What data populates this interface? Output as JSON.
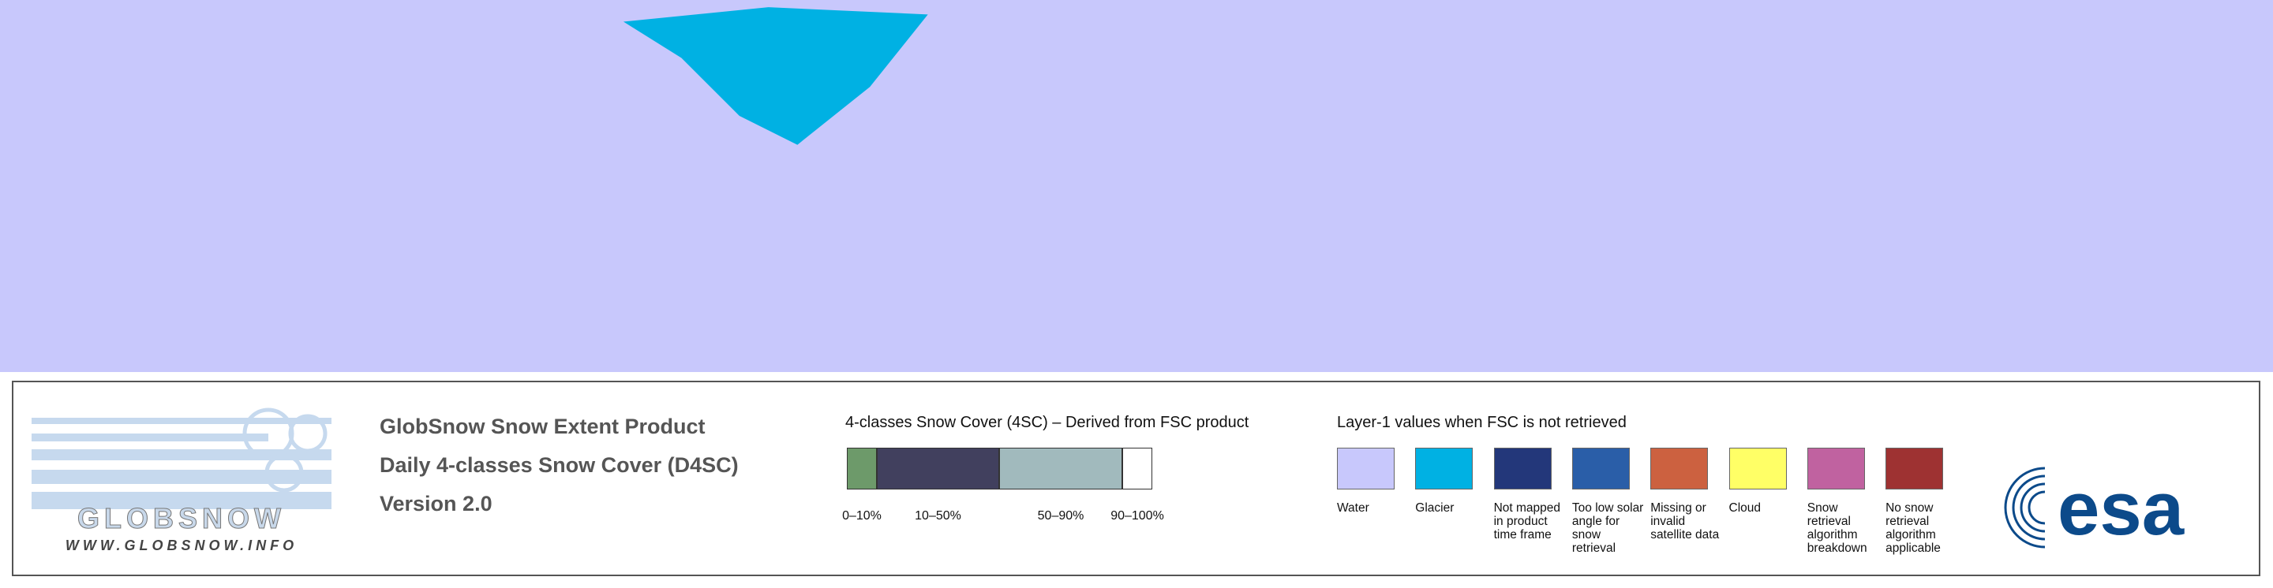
{
  "logo": {
    "name": "GLOBSNOW",
    "url": "WWW.GLOBSNOW.INFO"
  },
  "product": {
    "lines": [
      "GlobSnow Snow Extent Product",
      "Daily 4-classes Snow Cover (D4SC)",
      "Version 2.0"
    ]
  },
  "snow_cover_legend": {
    "title": "4-classes Snow Cover (4SC) – Derived from FSC product",
    "classes": [
      {
        "label": "0–10%",
        "color": "#6d9a6a"
      },
      {
        "label": "10–50%",
        "color": "#41405e"
      },
      {
        "label": "50–90%",
        "color": "#a1babd"
      },
      {
        "label": "90–100%",
        "color": "#ffffff"
      }
    ]
  },
  "layer1_legend": {
    "title": "Layer-1 values when FSC is not retrieved",
    "items": [
      {
        "label": "Water",
        "color": "#c8c8fc"
      },
      {
        "label": "Glacier",
        "color": "#00b1e3"
      },
      {
        "label": "Not mapped in product time frame",
        "color": "#23377a"
      },
      {
        "label": "Too low solar angle for snow retrieval",
        "color": "#2a5ea8"
      },
      {
        "label": "Missing or invalid satellite data",
        "color": "#cc6140"
      },
      {
        "label": "Cloud",
        "color": "#ffff66"
      },
      {
        "label": "Snow retrieval algorithm breakdown",
        "color": "#c062a0"
      },
      {
        "label": "No snow retrieval algorithm applicable",
        "color": "#9e3232"
      }
    ]
  },
  "agency": {
    "name": "esa"
  }
}
